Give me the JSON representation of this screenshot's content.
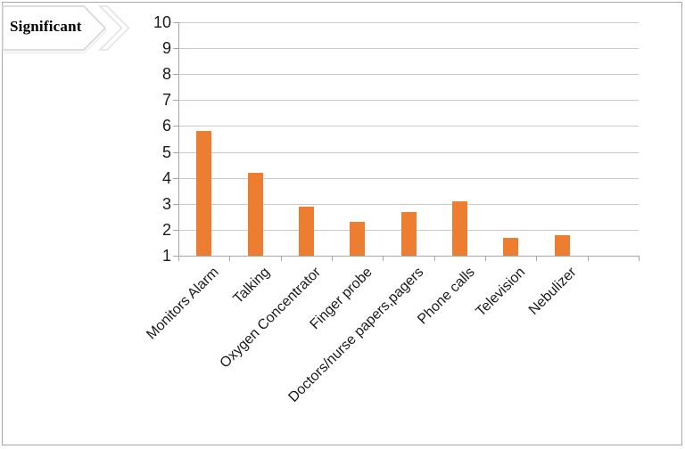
{
  "page": {
    "background": "#ffffff",
    "border_color": "#a9a9a9"
  },
  "callout": {
    "label": "Significant",
    "fill": "#ffffff",
    "stroke": "#d2d2d2",
    "shadow_stroke": "#ececec",
    "text_color": "#111111"
  },
  "chart_data": {
    "type": "bar",
    "title": "",
    "xlabel": "",
    "ylabel": "",
    "categories": [
      "Monitors Alarm",
      "Talking",
      "Oxygen Concentrator",
      "Finger probe",
      "Doctors/nurse papers,pagers",
      "Phone calls",
      "Television",
      "Nebulizer"
    ],
    "values": [
      5.8,
      4.2,
      2.9,
      2.3,
      2.7,
      3.1,
      1.7,
      1.8
    ],
    "ylim": [
      1,
      10
    ],
    "y_ticks": [
      1,
      2,
      3,
      4,
      5,
      6,
      7,
      8,
      9,
      10
    ],
    "grid": true,
    "legend": "none",
    "empty_trailing_slots": 1,
    "x_label_rotation_deg": -45,
    "bar_color": "#ED7D31",
    "gridline_color": "#c9c9c9",
    "axis_color": "#a6a6a6",
    "label_color": "#1a1a1a"
  }
}
